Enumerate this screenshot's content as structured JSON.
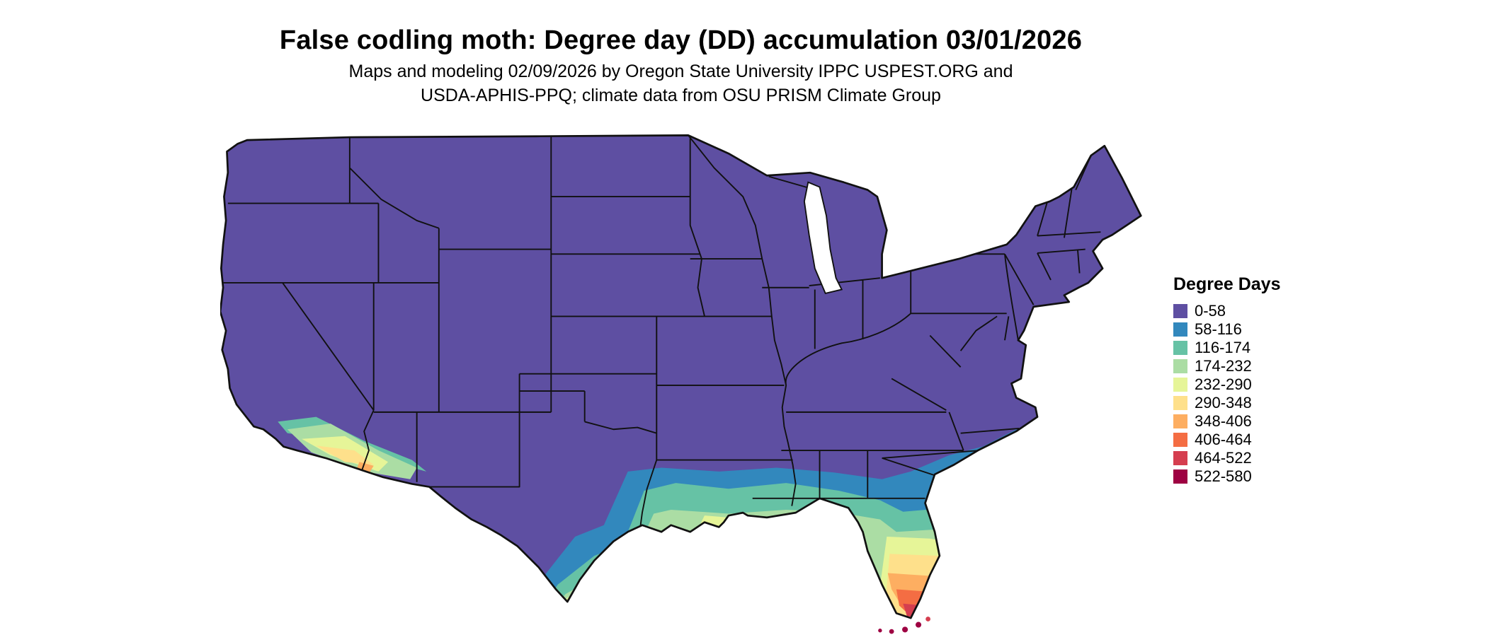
{
  "header": {
    "title": "False codling moth: Degree day (DD) accumulation 03/01/2026",
    "subtitle_line1": "Maps and modeling 02/09/2026 by Oregon State University IPPC USPEST.ORG and",
    "subtitle_line2": "USDA-APHIS-PPQ; climate data from OSU PRISM Climate Group"
  },
  "legend": {
    "title": "Degree Days",
    "items": [
      {
        "label": "0-58",
        "color": "#5e4fa2"
      },
      {
        "label": "58-116",
        "color": "#3288bd"
      },
      {
        "label": "116-174",
        "color": "#66c2a5"
      },
      {
        "label": "174-232",
        "color": "#abdda4"
      },
      {
        "label": "232-290",
        "color": "#e6f598"
      },
      {
        "label": "290-348",
        "color": "#fee08b"
      },
      {
        "label": "348-406",
        "color": "#fdae61"
      },
      {
        "label": "406-464",
        "color": "#f46d43"
      },
      {
        "label": "464-522",
        "color": "#d53e4f"
      },
      {
        "label": "522-580",
        "color": "#9e0142"
      }
    ]
  },
  "map": {
    "region": "Contiguous United States",
    "base_value_class": "0-58",
    "base_color": "#5e4fa2",
    "border_color": "#111111",
    "hotspots": "Southern Texas, Gulf Coast, Florida peninsula, southern Arizona and southern California show higher degree-day accumulation; Florida Keys highest (522-580)"
  }
}
